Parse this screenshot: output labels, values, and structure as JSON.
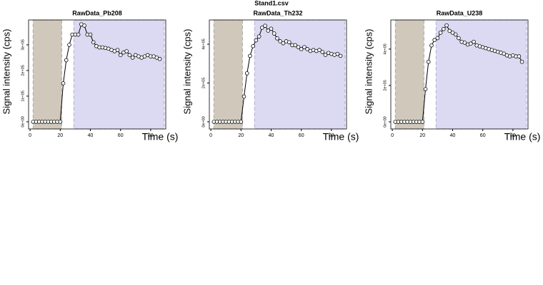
{
  "title": "Stand1.csv",
  "chart_data": [
    {
      "type": "line",
      "title": "RawData_Pb208",
      "x_label": "Time (s)",
      "y_label": "Signal intensity (cps)",
      "xlim": [
        -1,
        90
      ],
      "xticks": [
        0,
        20,
        40,
        60,
        80
      ],
      "ylim": [
        -28000,
        397000
      ],
      "yticks": [
        {
          "value": 0,
          "label": "0e+00"
        },
        {
          "value": 100000,
          "label": "1e+05"
        },
        {
          "value": 200000,
          "label": "2e+05"
        },
        {
          "value": 300000,
          "label": "3e+05"
        }
      ],
      "blank_window": [
        2,
        21
      ],
      "blank_color": "#cfc8bb",
      "signal_window": [
        29,
        89
      ],
      "signal_color": "#dcd9f2",
      "x": [
        2,
        4,
        6,
        8,
        10,
        12,
        14,
        16,
        18,
        20,
        22,
        24,
        26,
        28,
        30,
        32,
        34,
        36,
        38,
        40,
        42,
        44,
        46,
        48,
        50,
        52,
        54,
        56,
        58,
        60,
        62,
        64,
        66,
        68,
        70,
        72,
        74,
        76,
        78,
        80,
        82,
        84,
        86
      ],
      "values": [
        0,
        0,
        0,
        0,
        0,
        0,
        0,
        0,
        0,
        0,
        150000,
        240000,
        300000,
        340000,
        340000,
        340000,
        380000,
        375000,
        340000,
        340000,
        310000,
        295000,
        290000,
        290000,
        288000,
        285000,
        280000,
        275000,
        280000,
        260000,
        270000,
        275000,
        260000,
        250000,
        260000,
        255000,
        250000,
        255000,
        260000,
        255000,
        255000,
        250000,
        245000
      ]
    },
    {
      "type": "line",
      "title": "RawData_Th232",
      "x_label": "Time (s)",
      "y_label": "Signal intensity (cps)",
      "xlim": [
        -1,
        90
      ],
      "xticks": [
        0,
        20,
        40,
        60,
        80
      ],
      "ylim": [
        -37000,
        525000
      ],
      "yticks": [
        {
          "value": 0,
          "label": "0e+00"
        },
        {
          "value": 200000,
          "label": "2e+05"
        },
        {
          "value": 400000,
          "label": "4e+05"
        }
      ],
      "blank_window": [
        2,
        21
      ],
      "blank_color": "#cfc8bb",
      "signal_window": [
        29,
        89
      ],
      "signal_color": "#dcd9f2",
      "x": [
        2,
        4,
        6,
        8,
        10,
        12,
        14,
        16,
        18,
        20,
        22,
        24,
        26,
        28,
        30,
        32,
        34,
        36,
        38,
        40,
        42,
        44,
        46,
        48,
        50,
        52,
        54,
        56,
        58,
        60,
        62,
        64,
        66,
        68,
        70,
        72,
        74,
        76,
        78,
        80,
        82,
        84,
        86
      ],
      "values": [
        0,
        0,
        0,
        0,
        0,
        0,
        0,
        0,
        0,
        0,
        130000,
        250000,
        340000,
        390000,
        420000,
        440000,
        485000,
        495000,
        470000,
        480000,
        455000,
        430000,
        415000,
        405000,
        415000,
        410000,
        395000,
        395000,
        385000,
        375000,
        385000,
        375000,
        365000,
        370000,
        365000,
        370000,
        360000,
        345000,
        355000,
        350000,
        345000,
        350000,
        340000
      ]
    },
    {
      "type": "line",
      "title": "RawData_U238",
      "x_label": "Time (s)",
      "y_label": "Signal intensity (cps)",
      "xlim": [
        -1,
        90
      ],
      "xticks": [
        0,
        20,
        40,
        60,
        80
      ],
      "ylim": [
        -39000,
        560000
      ],
      "yticks": [
        {
          "value": 0,
          "label": "0e+00"
        },
        {
          "value": 200000,
          "label": "2e+05"
        },
        {
          "value": 400000,
          "label": "4e+05"
        }
      ],
      "blank_window": [
        2,
        21
      ],
      "blank_color": "#cfc8bb",
      "signal_window": [
        29,
        89
      ],
      "signal_color": "#dcd9f2",
      "x": [
        2,
        4,
        6,
        8,
        10,
        12,
        14,
        16,
        18,
        20,
        22,
        24,
        26,
        28,
        30,
        32,
        34,
        36,
        38,
        40,
        42,
        44,
        46,
        48,
        50,
        52,
        54,
        56,
        58,
        60,
        62,
        64,
        66,
        68,
        70,
        72,
        74,
        76,
        78,
        80,
        82,
        84,
        86
      ],
      "values": [
        0,
        0,
        0,
        0,
        0,
        0,
        0,
        0,
        0,
        0,
        180000,
        330000,
        420000,
        450000,
        460000,
        490000,
        510000,
        530000,
        500000,
        490000,
        480000,
        460000,
        440000,
        435000,
        425000,
        430000,
        440000,
        420000,
        415000,
        410000,
        405000,
        400000,
        395000,
        390000,
        385000,
        380000,
        375000,
        365000,
        360000,
        365000,
        360000,
        360000,
        330000
      ]
    }
  ]
}
